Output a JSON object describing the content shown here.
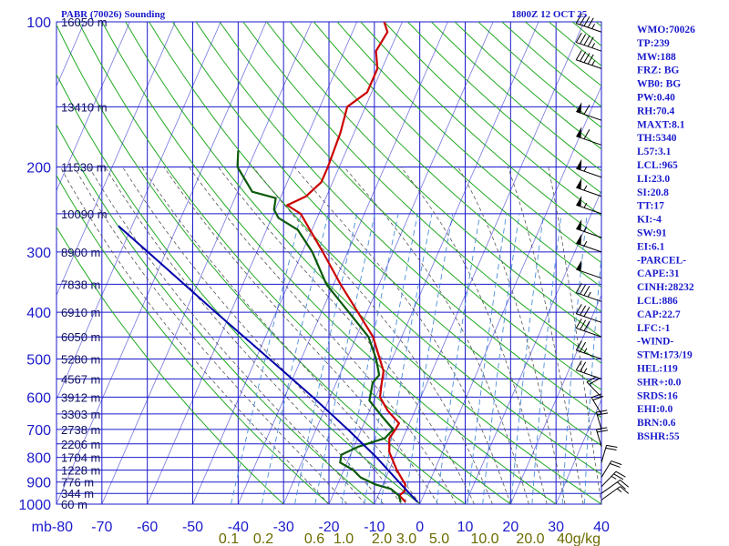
{
  "header": {
    "station": "PABR (70026) Sounding",
    "time": "1800Z 12 OCT 25"
  },
  "indices": [
    "WMO:70026",
    "TP:239",
    "MW:188",
    "FRZ: BG",
    "WB0: BG",
    "PW:0.40",
    "RH:70.4",
    "MAXT:8.1",
    "TH:5340",
    "L57:3.1",
    "LCL:965",
    "LI:23.0",
    "SI:20.8",
    "TT:17",
    "KI:-4",
    "SW:91",
    "EI:6.1",
    "-PARCEL-",
    "CAPE:31",
    "CINH:28232",
    "LCL:886",
    "CAP:22.7",
    "LFC:-1",
    "-WIND-",
    "STM:173/19",
    "HEL:119",
    "SHR+:0.0",
    "SRDS:16",
    "EHI:0.0",
    "BRN:0.6",
    "BSHR:55"
  ],
  "colors": {
    "isobar_isotherm": "#1a1acc",
    "dry_adiabat": "#22aa22",
    "moist_adiabat": "#555555",
    "mixing_ratio": "#4a8fd8",
    "temperature": "#cc0000",
    "dewpoint": "#0a5a0a",
    "parcel": "#0000aa"
  },
  "chart_data": {
    "type": "line",
    "title": "PABR (70026) Sounding",
    "subtitle": "1800Z 12 OCT 25",
    "x_unit": "°C",
    "y_unit": "mb",
    "y_scale": "log",
    "xlim": [
      -80,
      40
    ],
    "ylim": [
      1000,
      100
    ],
    "grid": true,
    "x_ticks": [
      -80,
      -70,
      -60,
      -50,
      -40,
      -30,
      -20,
      -10,
      0,
      10,
      20,
      30,
      40
    ],
    "x_tick_labels": [
      "mb-80",
      "-70",
      "-60",
      "-50",
      "-40",
      "-30",
      "-20",
      "-10",
      "0",
      "10",
      "20",
      "30",
      "40"
    ],
    "y_ticks": [
      100,
      200,
      300,
      400,
      500,
      600,
      700,
      800,
      900,
      1000
    ],
    "height_labels": [
      {
        "p": 100,
        "label": "16050 m"
      },
      {
        "p": 150,
        "label": "13410 m"
      },
      {
        "p": 200,
        "label": "11530 m"
      },
      {
        "p": 250,
        "label": "10090 m"
      },
      {
        "p": 300,
        "label": "8900 m"
      },
      {
        "p": 350,
        "label": "7838 m"
      },
      {
        "p": 400,
        "label": "6910 m"
      },
      {
        "p": 450,
        "label": "6050 m"
      },
      {
        "p": 500,
        "label": "5280 m"
      },
      {
        "p": 550,
        "label": "4567 m"
      },
      {
        "p": 600,
        "label": "3912 m"
      },
      {
        "p": 650,
        "label": "3303 m"
      },
      {
        "p": 700,
        "label": "2738 m"
      },
      {
        "p": 750,
        "label": "2206 m"
      },
      {
        "p": 800,
        "label": "1704 m"
      },
      {
        "p": 850,
        "label": "1228 m"
      },
      {
        "p": 900,
        "label": "776 m"
      },
      {
        "p": 950,
        "label": "344 m"
      },
      {
        "p": 1000,
        "label": "60 m"
      }
    ],
    "mixing_ratio_labels": [
      "0.1",
      "0.2",
      "0.6",
      "1.0",
      "2.0",
      "3.0",
      "5.0",
      "10.0",
      "20.0",
      "40g/kg"
    ],
    "series": [
      {
        "key": "temperature",
        "points": [
          {
            "p": 990,
            "t": -3.3
          },
          {
            "p": 960,
            "t": -5.3
          },
          {
            "p": 940,
            "t": -4.6
          },
          {
            "p": 910,
            "t": -5.1
          },
          {
            "p": 850,
            "t": -8.3
          },
          {
            "p": 780,
            "t": -11.7
          },
          {
            "p": 730,
            "t": -13.0
          },
          {
            "p": 700,
            "t": -12.5
          },
          {
            "p": 680,
            "t": -12.3
          },
          {
            "p": 640,
            "t": -16.0
          },
          {
            "p": 600,
            "t": -19.0
          },
          {
            "p": 560,
            "t": -20.0
          },
          {
            "p": 530,
            "t": -20.7
          },
          {
            "p": 500,
            "t": -22.7
          },
          {
            "p": 450,
            "t": -26.3
          },
          {
            "p": 400,
            "t": -32.0
          },
          {
            "p": 350,
            "t": -38.5
          },
          {
            "p": 300,
            "t": -45.5
          },
          {
            "p": 250,
            "t": -54.0
          },
          {
            "p": 240,
            "t": -57.8
          },
          {
            "p": 230,
            "t": -54.5
          },
          {
            "p": 215,
            "t": -52.5
          },
          {
            "p": 200,
            "t": -52.5
          },
          {
            "p": 170,
            "t": -53.0
          },
          {
            "p": 150,
            "t": -54.0
          },
          {
            "p": 140,
            "t": -51.0
          },
          {
            "p": 125,
            "t": -51.0
          },
          {
            "p": 115,
            "t": -53.0
          },
          {
            "p": 105,
            "t": -52.3
          },
          {
            "p": 100,
            "t": -54.0
          }
        ]
      },
      {
        "key": "dewpoint",
        "points": [
          {
            "p": 990,
            "t": -4.4
          },
          {
            "p": 960,
            "t": -5.4
          },
          {
            "p": 930,
            "t": -7.8
          },
          {
            "p": 910,
            "t": -11.7
          },
          {
            "p": 880,
            "t": -15.6
          },
          {
            "p": 850,
            "t": -17.9
          },
          {
            "p": 820,
            "t": -21.5
          },
          {
            "p": 790,
            "t": -22.0
          },
          {
            "p": 760,
            "t": -19.0
          },
          {
            "p": 730,
            "t": -14.0
          },
          {
            "p": 700,
            "t": -13.0
          },
          {
            "p": 660,
            "t": -16.5
          },
          {
            "p": 610,
            "t": -21.0
          },
          {
            "p": 560,
            "t": -22.0
          },
          {
            "p": 540,
            "t": -21.3
          },
          {
            "p": 500,
            "t": -23.5
          },
          {
            "p": 450,
            "t": -27.3
          },
          {
            "p": 400,
            "t": -34.0
          },
          {
            "p": 350,
            "t": -41.6
          },
          {
            "p": 300,
            "t": -47.8
          },
          {
            "p": 270,
            "t": -53.1
          },
          {
            "p": 255,
            "t": -58.5
          },
          {
            "p": 245,
            "t": -60.3
          },
          {
            "p": 232,
            "t": -61.0
          },
          {
            "p": 225,
            "t": -66.8
          },
          {
            "p": 200,
            "t": -72.4
          },
          {
            "p": 185,
            "t": -73.8
          }
        ]
      },
      {
        "key": "parcel",
        "points": [
          {
            "p": 990,
            "t": -0.7
          },
          {
            "p": 900,
            "t": -6.7
          },
          {
            "p": 800,
            "t": -14.0
          },
          {
            "p": 700,
            "t": -23.0
          },
          {
            "p": 600,
            "t": -33.8
          },
          {
            "p": 500,
            "t": -47.0
          },
          {
            "p": 400,
            "t": -63.3
          },
          {
            "p": 300,
            "t": -84.0
          },
          {
            "p": 265,
            "t": -93.0
          }
        ]
      }
    ],
    "wind_barbs": [
      {
        "p": 105,
        "dir": 300,
        "kt": 45
      },
      {
        "p": 115,
        "dir": 300,
        "kt": 45
      },
      {
        "p": 125,
        "dir": 300,
        "kt": 45
      },
      {
        "p": 160,
        "dir": 300,
        "kt": 60
      },
      {
        "p": 180,
        "dir": 300,
        "kt": 60
      },
      {
        "p": 210,
        "dir": 300,
        "kt": 55
      },
      {
        "p": 230,
        "dir": 300,
        "kt": 55
      },
      {
        "p": 250,
        "dir": 300,
        "kt": 55
      },
      {
        "p": 280,
        "dir": 300,
        "kt": 55
      },
      {
        "p": 300,
        "dir": 300,
        "kt": 55
      },
      {
        "p": 340,
        "dir": 300,
        "kt": 50
      },
      {
        "p": 380,
        "dir": 300,
        "kt": 35
      },
      {
        "p": 420,
        "dir": 300,
        "kt": 30
      },
      {
        "p": 450,
        "dir": 300,
        "kt": 30
      },
      {
        "p": 500,
        "dir": 300,
        "kt": 25
      },
      {
        "p": 550,
        "dir": 300,
        "kt": 25
      },
      {
        "p": 600,
        "dir": 330,
        "kt": 20
      },
      {
        "p": 650,
        "dir": 340,
        "kt": 20
      },
      {
        "p": 700,
        "dir": 350,
        "kt": 20
      },
      {
        "p": 760,
        "dir": 350,
        "kt": 20
      },
      {
        "p": 820,
        "dir": 10,
        "kt": 20
      },
      {
        "p": 880,
        "dir": 20,
        "kt": 20
      },
      {
        "p": 920,
        "dir": 30,
        "kt": 25
      },
      {
        "p": 950,
        "dir": 40,
        "kt": 20
      },
      {
        "p": 980,
        "dir": 40,
        "kt": 15
      }
    ]
  }
}
